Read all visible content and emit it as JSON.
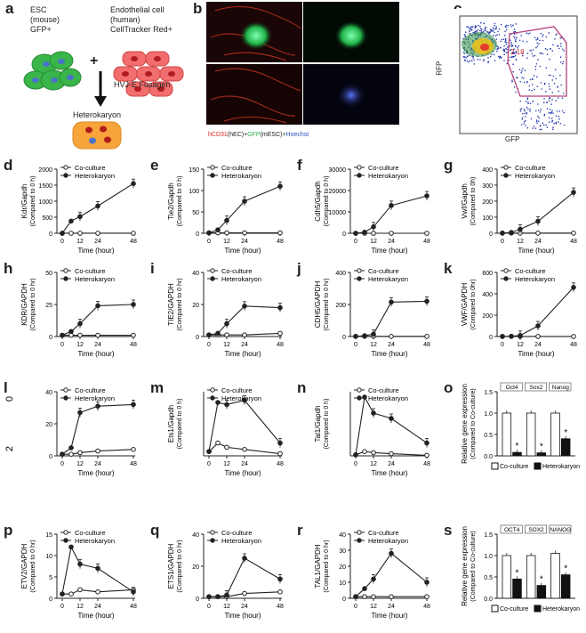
{
  "panel_letters": {
    "a": "a",
    "b": "b",
    "c": "c",
    "d": "d",
    "e": "e",
    "f": "f",
    "g": "g",
    "h": "h",
    "i": "i",
    "j": "j",
    "k": "k",
    "l": "l",
    "m": "m",
    "n": "n",
    "o": "o",
    "p": "p",
    "q": "q",
    "r": "r",
    "s": "s"
  },
  "panel_a": {
    "esc_line1": "ESC",
    "esc_line2": "(mouse)",
    "esc_line3": "GFP+",
    "endo_line1": "Endothelial cell",
    "endo_line2": "(human)",
    "endo_line3": "CellTracker Red+",
    "plus": "+",
    "fusion": "HVJ-E Fusagen",
    "result": "Heterokaryon"
  },
  "panel_b": {
    "caption_red": "hCD31",
    "caption_mid1": "(hEC)+",
    "caption_green": "GFP",
    "caption_mid2": "(mESC)+",
    "caption_blue": "Hoechst",
    "colors": {
      "red": "#e0241b",
      "green": "#2bb24c",
      "blue": "#2a52be"
    }
  },
  "panel_c": {
    "ylabel": "RFP",
    "xlabel": "GFP",
    "gate_value": "2.18"
  },
  "legend": {
    "coculture": "Co-culture",
    "heterokaryon": "Heterokaryon"
  },
  "chart_data": [
    {
      "type": "line",
      "x": [
        0,
        6,
        12,
        24,
        48
      ],
      "xlabel": "Time (hour)",
      "ylabel": "Kdr/Gapdh",
      "ylabel2": "(Compared to 0 h)",
      "ylim": [
        0,
        2000
      ],
      "yticks": [
        "0",
        "500",
        "1000",
        "1500",
        "2000"
      ],
      "xticks": [
        "0",
        "12",
        "24",
        "48"
      ],
      "series": [
        {
          "name": "Co-culture",
          "values": [
            1,
            1,
            1,
            1,
            1
          ]
        },
        {
          "name": "Heterokaryon",
          "values": [
            1,
            380,
            520,
            850,
            1550
          ]
        }
      ]
    },
    {
      "type": "line",
      "x": [
        0,
        6,
        12,
        24,
        48
      ],
      "xlabel": "Time (hour)",
      "ylabel": "Tie2/Gapdh",
      "ylabel2": "(Compared to 0 h)",
      "ylim": [
        0,
        150
      ],
      "yticks": [
        "0",
        "50",
        "100",
        "150"
      ],
      "xticks": [
        "0",
        "12",
        "24",
        "48"
      ],
      "series": [
        {
          "name": "Co-culture",
          "values": [
            1,
            1,
            1,
            1,
            1
          ]
        },
        {
          "name": "Heterokaryon",
          "values": [
            1,
            8,
            30,
            75,
            110
          ]
        }
      ]
    },
    {
      "type": "line",
      "x": [
        0,
        6,
        12,
        24,
        48
      ],
      "xlabel": "Time (hour)",
      "ylabel": "Cdh5/Gapdh",
      "ylabel2": "(Compared to 0 h)",
      "ylim": [
        0,
        30000
      ],
      "yticks": [
        "0",
        "10000",
        "20000",
        "30000"
      ],
      "xticks": [
        "0",
        "12",
        "24",
        "48"
      ],
      "series": [
        {
          "name": "Co-culture",
          "values": [
            1,
            1,
            1,
            1,
            1
          ]
        },
        {
          "name": "Heterokaryon",
          "values": [
            1,
            500,
            3000,
            13000,
            17500
          ]
        }
      ]
    },
    {
      "type": "line",
      "x": [
        0,
        6,
        12,
        24,
        48
      ],
      "xlabel": "Time (hour)",
      "ylabel": "Vwf/Gapdh",
      "ylabel2": "(Compared to 0h)",
      "ylim": [
        0,
        400
      ],
      "yticks": [
        "0",
        "100",
        "200",
        "300",
        "400"
      ],
      "xticks": [
        "0",
        "12",
        "24",
        "48"
      ],
      "series": [
        {
          "name": "Co-culture",
          "values": [
            1,
            1,
            1,
            1,
            1
          ]
        },
        {
          "name": "Heterokaryon",
          "values": [
            1,
            5,
            25,
            75,
            255
          ]
        }
      ]
    },
    {
      "type": "line",
      "x": [
        0,
        6,
        12,
        24,
        48
      ],
      "xlabel": "Time (hour)",
      "ylabel": "KDR/GAPDH",
      "ylabel2": "(Compared to 0 hr)",
      "ylim": [
        0,
        50
      ],
      "yticks": [
        "0",
        "25",
        "50"
      ],
      "xticks": [
        "0",
        "12",
        "24",
        "48"
      ],
      "series": [
        {
          "name": "Co-culture",
          "values": [
            1,
            1,
            1,
            1,
            1
          ]
        },
        {
          "name": "Heterokaryon",
          "values": [
            1,
            4,
            10,
            24,
            25
          ]
        }
      ]
    },
    {
      "type": "line",
      "x": [
        0,
        6,
        12,
        24,
        48
      ],
      "xlabel": "Time (hour)",
      "ylabel": "TIE2/GAPDH",
      "ylabel2": "(Compared to 0 hr)",
      "ylim": [
        0,
        40
      ],
      "yticks": [
        "0",
        "20",
        "40"
      ],
      "xticks": [
        "0",
        "12",
        "24",
        "48"
      ],
      "series": [
        {
          "name": "Co-culture",
          "values": [
            1,
            1,
            1,
            1,
            2
          ]
        },
        {
          "name": "Heterokaryon",
          "values": [
            1,
            2,
            8,
            19,
            18
          ]
        }
      ]
    },
    {
      "type": "line",
      "x": [
        0,
        6,
        12,
        24,
        48
      ],
      "xlabel": "Time (hour)",
      "ylabel": "CDH5/GAPDH",
      "ylabel2": "(Compared to 0 hr)",
      "ylim": [
        0,
        400
      ],
      "yticks": [
        "0",
        "200",
        "400"
      ],
      "xticks": [
        "0",
        "12",
        "24",
        "48"
      ],
      "series": [
        {
          "name": "Co-culture",
          "values": [
            1,
            1,
            1,
            1,
            1
          ]
        },
        {
          "name": "Heterokaryon",
          "values": [
            1,
            5,
            15,
            215,
            220
          ]
        }
      ]
    },
    {
      "type": "line",
      "x": [
        0,
        6,
        12,
        24,
        48
      ],
      "xlabel": "Time (hour)",
      "ylabel": "VWF/GAPDH",
      "ylabel2": "(Compared to 0hr)",
      "ylim": [
        0,
        600
      ],
      "yticks": [
        "0",
        "200",
        "400",
        "600"
      ],
      "xticks": [
        "0",
        "12",
        "24",
        "48"
      ],
      "series": [
        {
          "name": "Co-culture",
          "values": [
            1,
            1,
            1,
            1,
            1
          ]
        },
        {
          "name": "Heterokaryon",
          "values": [
            1,
            3,
            10,
            100,
            460
          ]
        }
      ]
    },
    {
      "type": "line",
      "x": [
        0,
        6,
        12,
        24,
        48
      ],
      "xlabel": "Time (hour)",
      "ylabel": "",
      "ylabel2": "",
      "ylim": [
        0,
        40
      ],
      "yticks": [
        "0",
        "20",
        "40"
      ],
      "xticks": [
        "0",
        "12",
        "24",
        "48"
      ],
      "series": [
        {
          "name": "Co-culture",
          "values": [
            1,
            1,
            2,
            3,
            4
          ]
        },
        {
          "name": "Heterokaryon",
          "values": [
            1,
            5,
            27,
            31,
            32
          ]
        }
      ],
      "visible_axis_marks": [
        "0",
        "2"
      ]
    },
    {
      "type": "line",
      "x": [
        0,
        6,
        12,
        24,
        48
      ],
      "xlabel": "Time (hour)",
      "ylabel": "Ets1/Gapdh",
      "ylabel2": "(Compared to 0 h)",
      "ylim": [
        0,
        15
      ],
      "yticks": [],
      "xticks": [
        "0",
        "12",
        "24",
        "48"
      ],
      "series": [
        {
          "name": "Co-culture",
          "values": [
            1,
            3,
            2,
            1.5,
            0.5
          ]
        },
        {
          "name": "Heterokaryon",
          "values": [
            1,
            12.5,
            12,
            13,
            3
          ]
        }
      ]
    },
    {
      "type": "line",
      "x": [
        0,
        6,
        12,
        24,
        48
      ],
      "xlabel": "Time (hour)",
      "ylabel": "Tal1/Gapdh",
      "ylabel2": "(Compared to 0 h)",
      "ylim": [
        0,
        60
      ],
      "yticks": [],
      "xticks": [
        "0",
        "12",
        "24",
        "48"
      ],
      "series": [
        {
          "name": "Co-culture",
          "values": [
            1,
            4,
            3,
            2,
            0.5
          ]
        },
        {
          "name": "Heterokaryon",
          "values": [
            1,
            55,
            40,
            35,
            12
          ]
        }
      ]
    },
    {
      "type": "bar",
      "categories": [
        "Oct4",
        "Sox2",
        "Nanog"
      ],
      "ylabel": "Relative gene expression",
      "ylabel2": "(Compared to Co-culture)",
      "ylim": [
        0,
        1.5
      ],
      "yticks": [
        "0.0",
        "0.5",
        "1.0",
        "1.5"
      ],
      "series": [
        {
          "name": "Co-culture",
          "values": [
            1.0,
            1.0,
            1.0
          ]
        },
        {
          "name": "Heterokaryon",
          "values": [
            0.08,
            0.07,
            0.4
          ]
        }
      ],
      "annotations": [
        "*",
        "*",
        "*"
      ]
    },
    {
      "type": "line",
      "x": [
        0,
        6,
        12,
        24,
        48
      ],
      "xlabel": "Time (hour)",
      "ylabel": "ETV2/GAPDH",
      "ylabel2": "(Compared to 0 hr)",
      "ylim": [
        0,
        15
      ],
      "yticks": [
        "0",
        "5",
        "10",
        "15"
      ],
      "xticks": [
        "0",
        "12",
        "24",
        "48"
      ],
      "series": [
        {
          "name": "Co-culture",
          "values": [
            1,
            1,
            2,
            1.5,
            2
          ]
        },
        {
          "name": "Heterokaryon",
          "values": [
            1,
            12,
            8,
            7,
            1.5
          ]
        }
      ]
    },
    {
      "type": "line",
      "x": [
        0,
        6,
        12,
        24,
        48
      ],
      "xlabel": "Time (hour)",
      "ylabel": "ETS1/GAPDH",
      "ylabel2": "(Compared to 0 hr)",
      "ylim": [
        0,
        40
      ],
      "yticks": [
        "0",
        "20",
        "40"
      ],
      "xticks": [
        "0",
        "12",
        "24",
        "48"
      ],
      "series": [
        {
          "name": "Co-culture",
          "values": [
            1,
            1,
            1,
            3,
            4
          ]
        },
        {
          "name": "Heterokaryon",
          "values": [
            1,
            1,
            2,
            25,
            12
          ]
        }
      ]
    },
    {
      "type": "line",
      "x": [
        0,
        6,
        12,
        24,
        48
      ],
      "xlabel": "Time (hour)",
      "ylabel": "TAL1/GAPDH",
      "ylabel2": "(Compared to 0 hr)",
      "ylim": [
        0,
        40
      ],
      "yticks": [
        "0",
        "10",
        "20",
        "30",
        "40"
      ],
      "xticks": [
        "0",
        "12",
        "24",
        "48"
      ],
      "series": [
        {
          "name": "Co-culture",
          "values": [
            1,
            1,
            1,
            1,
            1
          ]
        },
        {
          "name": "Heterokaryon",
          "values": [
            1,
            6,
            12,
            28,
            10
          ]
        }
      ]
    },
    {
      "type": "bar",
      "categories": [
        "OCT4",
        "SOX2",
        "NANOG"
      ],
      "ylabel": "Relative gene expression",
      "ylabel2": "(Compared to Co-culture)",
      "ylim": [
        0,
        1.5
      ],
      "yticks": [
        "0.0",
        "0.5",
        "1.0",
        "1.5"
      ],
      "series": [
        {
          "name": "Co-culture",
          "values": [
            1.0,
            1.0,
            1.05
          ]
        },
        {
          "name": "Heterokaryon",
          "values": [
            0.45,
            0.3,
            0.55
          ]
        }
      ],
      "annotations": [
        "*",
        "*",
        "*"
      ]
    }
  ]
}
